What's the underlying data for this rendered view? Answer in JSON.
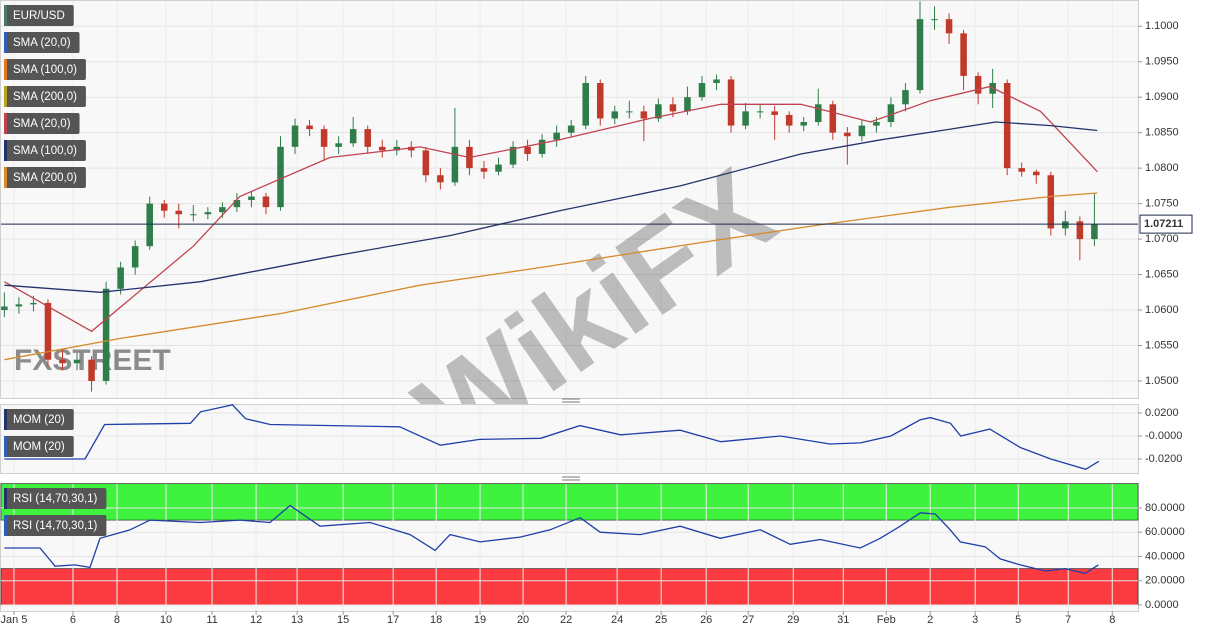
{
  "chart_data": [
    {
      "type": "candlestick",
      "legend": [
        {
          "label": "EUR/USD",
          "color": "#4b7a6a"
        },
        {
          "label": "SMA (20,0)",
          "color": "#2f5fb5"
        },
        {
          "label": "SMA (100,0)",
          "color": "#e07b22"
        },
        {
          "label": "SMA (200,0)",
          "color": "#b9a21e"
        },
        {
          "label": "SMA (20,0)",
          "color": "#c0434f"
        },
        {
          "label": "SMA (100,0)",
          "color": "#24336b"
        },
        {
          "label": "SMA (200,0)",
          "color": "#d58a2b"
        }
      ],
      "up_color": "#2f7d4a",
      "down_color": "#c0392b",
      "xlim": [
        -0.3,
        78
      ],
      "ylim": [
        1.0476,
        1.1037
      ],
      "yticks": [
        {
          "value": 1.05,
          "label": "1.0500"
        },
        {
          "value": 1.055,
          "label": "1.0550"
        },
        {
          "value": 1.06,
          "label": "1.0600"
        },
        {
          "value": 1.065,
          "label": "1.0650"
        },
        {
          "value": 1.07,
          "label": "1.0700"
        },
        {
          "value": 1.075,
          "label": "1.0750"
        },
        {
          "value": 1.08,
          "label": "1.0800"
        },
        {
          "value": 1.085,
          "label": "1.0850"
        },
        {
          "value": 1.09,
          "label": "1.0900"
        },
        {
          "value": 1.095,
          "label": "1.0950"
        },
        {
          "value": 1.1,
          "label": "1.1000"
        }
      ],
      "last_price": 1.07211,
      "watermarks": [
        "FXSTREET",
        "WikiFX"
      ],
      "ohlc": [
        [
          1.06,
          1.0625,
          1.059,
          1.0605
        ],
        [
          1.0605,
          1.0618,
          1.0595,
          1.0608
        ],
        [
          1.0608,
          1.062,
          1.0598,
          1.061
        ],
        [
          1.061,
          1.0615,
          1.052,
          1.053
        ],
        [
          1.053,
          1.0545,
          1.0515,
          1.0525
        ],
        [
          1.0525,
          1.054,
          1.0515,
          1.053
        ],
        [
          1.053,
          1.0535,
          1.0485,
          1.05
        ],
        [
          1.05,
          1.064,
          1.0495,
          1.063
        ],
        [
          1.063,
          1.0668,
          1.0622,
          1.066
        ],
        [
          1.066,
          1.0698,
          1.065,
          1.069
        ],
        [
          1.069,
          1.076,
          1.0685,
          1.075
        ],
        [
          1.075,
          1.0755,
          1.073,
          1.074
        ],
        [
          1.074,
          1.075,
          1.0715,
          1.0735
        ],
        [
          1.0735,
          1.0748,
          1.0725,
          1.0735
        ],
        [
          1.0735,
          1.0745,
          1.0728,
          1.0738
        ],
        [
          1.0738,
          1.0752,
          1.073,
          1.0745
        ],
        [
          1.0745,
          1.0765,
          1.0738,
          1.0755
        ],
        [
          1.0755,
          1.0768,
          1.0745,
          1.076
        ],
        [
          1.076,
          1.0765,
          1.0735,
          1.0745
        ],
        [
          1.0745,
          1.0845,
          1.074,
          1.083
        ],
        [
          1.083,
          1.087,
          1.082,
          1.086
        ],
        [
          1.086,
          1.0868,
          1.0845,
          1.0855
        ],
        [
          1.0855,
          1.086,
          1.081,
          1.083
        ],
        [
          1.083,
          1.0845,
          1.082,
          1.0835
        ],
        [
          1.0835,
          1.0872,
          1.083,
          1.0855
        ],
        [
          1.0855,
          1.086,
          1.082,
          1.083
        ],
        [
          1.083,
          1.084,
          1.0815,
          1.0825
        ],
        [
          1.0825,
          1.084,
          1.0818,
          1.083
        ],
        [
          1.083,
          1.0838,
          1.0815,
          1.0825
        ],
        [
          1.0825,
          1.083,
          1.078,
          1.079
        ],
        [
          1.079,
          1.08,
          1.077,
          1.078
        ],
        [
          1.078,
          1.0885,
          1.0775,
          1.083
        ],
        [
          1.083,
          1.084,
          1.079,
          1.08
        ],
        [
          1.08,
          1.081,
          1.0785,
          1.0795
        ],
        [
          1.0795,
          1.0815,
          1.079,
          1.0805
        ],
        [
          1.0805,
          1.0838,
          1.08,
          1.083
        ],
        [
          1.083,
          1.084,
          1.081,
          1.082
        ],
        [
          1.082,
          1.0848,
          1.0815,
          1.084
        ],
        [
          1.084,
          1.086,
          1.083,
          1.085
        ],
        [
          1.085,
          1.0868,
          1.0845,
          1.086
        ],
        [
          1.086,
          1.093,
          1.0855,
          1.092
        ],
        [
          1.092,
          1.0925,
          1.086,
          1.087
        ],
        [
          1.087,
          1.0888,
          1.0862,
          1.088
        ],
        [
          1.088,
          1.0895,
          1.087,
          1.088
        ],
        [
          1.088,
          1.0888,
          1.0838,
          1.087
        ],
        [
          1.087,
          1.0898,
          1.0865,
          1.089
        ],
        [
          1.089,
          1.09,
          1.0872,
          1.088
        ],
        [
          1.088,
          1.0915,
          1.0875,
          1.09
        ],
        [
          1.09,
          1.093,
          1.0895,
          1.092
        ],
        [
          1.092,
          1.0932,
          1.091,
          1.0925
        ],
        [
          1.0925,
          1.093,
          1.085,
          1.086
        ],
        [
          1.086,
          1.0892,
          1.0855,
          1.088
        ],
        [
          1.088,
          1.089,
          1.087,
          1.088
        ],
        [
          1.088,
          1.0888,
          1.084,
          1.0875
        ],
        [
          1.0875,
          1.088,
          1.085,
          1.086
        ],
        [
          1.086,
          1.0872,
          1.0852,
          1.0865
        ],
        [
          1.0865,
          1.0912,
          1.086,
          1.089
        ],
        [
          1.089,
          1.0895,
          1.084,
          1.085
        ],
        [
          1.085,
          1.0858,
          1.0805,
          1.0845
        ],
        [
          1.0845,
          1.0868,
          1.0838,
          1.086
        ],
        [
          1.086,
          1.0872,
          1.085,
          1.0865
        ],
        [
          1.0865,
          1.09,
          1.0858,
          1.089
        ],
        [
          1.089,
          1.092,
          1.088,
          1.091
        ],
        [
          1.091,
          1.1035,
          1.0905,
          1.101
        ],
        [
          1.101,
          1.1028,
          1.0995,
          1.101
        ],
        [
          1.101,
          1.1018,
          1.0975,
          1.099
        ],
        [
          1.099,
          1.0995,
          1.091,
          1.093
        ],
        [
          1.093,
          1.0935,
          1.089,
          1.0905
        ],
        [
          1.0905,
          1.094,
          1.0885,
          1.092
        ],
        [
          1.092,
          1.0925,
          1.079,
          1.08
        ],
        [
          1.08,
          1.0808,
          1.0788,
          1.0795
        ],
        [
          1.0795,
          1.0798,
          1.0778,
          1.079
        ],
        [
          1.079,
          1.0795,
          1.0705,
          1.0715
        ],
        [
          1.0715,
          1.074,
          1.0705,
          1.0725
        ],
        [
          1.0725,
          1.0732,
          1.067,
          1.07
        ],
        [
          1.07,
          1.0765,
          1.069,
          1.0721
        ]
      ],
      "series": [
        {
          "color": "#c0434f",
          "x": [
            0,
            6,
            13,
            16.2,
            22.4,
            28.6,
            32,
            38.2,
            44.4,
            49.3,
            54.8,
            59.6,
            63.7,
            67.8,
            71.3,
            75.2
          ],
          "values": [
            1.064,
            1.057,
            1.069,
            1.076,
            1.0815,
            1.083,
            1.0815,
            1.084,
            1.087,
            1.089,
            1.089,
            1.0865,
            1.0895,
            1.0915,
            1.088,
            1.0795
          ]
        },
        {
          "color": "#24336b",
          "x": [
            0,
            6.6,
            13.5,
            22.4,
            30.7,
            38.2,
            46.5,
            54.8,
            60.3,
            65.1,
            68.2,
            72,
            75.2
          ],
          "values": [
            1.0635,
            1.0625,
            1.064,
            1.0675,
            1.0705,
            1.074,
            1.0775,
            1.082,
            1.084,
            1.0855,
            1.0865,
            1.086,
            1.0853
          ]
        },
        {
          "color": "#d58a2b",
          "x": [
            0,
            8,
            19,
            28.6,
            36.9,
            47.9,
            56.1,
            65.1,
            72,
            75.2
          ],
          "values": [
            1.053,
            1.056,
            1.0595,
            1.0635,
            1.066,
            1.0695,
            1.072,
            1.0745,
            1.076,
            1.0765
          ]
        }
      ]
    },
    {
      "type": "line",
      "legend": [
        {
          "label": "MOM (20)",
          "color": "#24336b"
        },
        {
          "label": "MOM (20)",
          "color": "#2f5fb5"
        }
      ],
      "xlim": [
        -0.3,
        78
      ],
      "ylim": [
        -0.0322,
        0.0278
      ],
      "yticks": [
        {
          "value": -0.02,
          "label": "-0.0200"
        },
        {
          "value": 0,
          "label": "-0.0000"
        },
        {
          "value": 0.02,
          "label": "0.0200"
        }
      ],
      "series": [
        {
          "color": "#1f3fa8",
          "x": [
            0,
            5.55,
            6.9,
            12.8,
            13.5,
            15.7,
            16.6,
            18.3,
            27.2,
            30,
            32.7,
            36.9,
            39.6,
            42.4,
            46.5,
            49.3,
            53.4,
            56.8,
            58.9,
            61,
            63,
            63.7,
            65.1,
            65.8,
            67.8,
            69.9,
            72,
            74.4,
            75.3
          ],
          "values": [
            -0.02,
            -0.02,
            0.01,
            0.011,
            0.021,
            0.027,
            0.015,
            0.01,
            0.008,
            -0.008,
            -0.003,
            -0.002,
            0.009,
            0.001,
            0.005,
            -0.005,
            0.0,
            -0.007,
            -0.006,
            0.0,
            0.014,
            0.016,
            0.011,
            0.0,
            0.006,
            -0.01,
            -0.02,
            -0.029,
            -0.022
          ]
        }
      ]
    },
    {
      "type": "line",
      "legend": [
        {
          "label": "RSI (14,70,30,1)",
          "color": "#24336b"
        },
        {
          "label": "RSI (14,70,30,1)",
          "color": "#2f5fb5"
        }
      ],
      "xlim": [
        -0.3,
        78
      ],
      "ylim": [
        -5,
        100.6
      ],
      "yticks": [
        {
          "value": 0,
          "label": "0.0000"
        },
        {
          "value": 20,
          "label": "20.0000"
        },
        {
          "value": 40,
          "label": "40.0000"
        },
        {
          "value": 60,
          "label": "60.0000"
        },
        {
          "value": 80,
          "label": "80.0000"
        }
      ],
      "bands": [
        {
          "range": [
            70,
            100
          ],
          "color": "#3ef23e"
        },
        {
          "range": [
            0,
            30
          ],
          "color": "#fb3b3f"
        }
      ],
      "xticks": [
        {
          "value": 0.66,
          "label": "Jan 5"
        },
        {
          "value": 4.72,
          "label": "6"
        },
        {
          "value": 7.75,
          "label": "8"
        },
        {
          "value": 11.12,
          "label": "10"
        },
        {
          "value": 14.29,
          "label": "11"
        },
        {
          "value": 17.32,
          "label": "12"
        },
        {
          "value": 20.14,
          "label": "13"
        },
        {
          "value": 23.31,
          "label": "15"
        },
        {
          "value": 26.75,
          "label": "17"
        },
        {
          "value": 29.71,
          "label": "18"
        },
        {
          "value": 32.73,
          "label": "19"
        },
        {
          "value": 35.69,
          "label": "20"
        },
        {
          "value": 38.65,
          "label": "22"
        },
        {
          "value": 42.16,
          "label": "24"
        },
        {
          "value": 45.19,
          "label": "25"
        },
        {
          "value": 48.29,
          "label": "26"
        },
        {
          "value": 51.18,
          "label": "27"
        },
        {
          "value": 54.28,
          "label": "29"
        },
        {
          "value": 57.72,
          "label": "31"
        },
        {
          "value": 60.68,
          "label": "Feb"
        },
        {
          "value": 63.7,
          "label": "2"
        },
        {
          "value": 66.8,
          "label": "3"
        },
        {
          "value": 69.76,
          "label": "5"
        },
        {
          "value": 73.2,
          "label": "7"
        },
        {
          "value": 76.23,
          "label": "8"
        }
      ],
      "series": [
        {
          "color": "#1f3fa8",
          "x": [
            0,
            2.45,
            3.49,
            4.86,
            5.89,
            6.58,
            8.65,
            10.02,
            13.46,
            16.22,
            18.28,
            19.66,
            21.72,
            25.16,
            27.92,
            29.64,
            30.67,
            32.73,
            35.49,
            37.55,
            39.62,
            40.99,
            43.75,
            46.5,
            49.25,
            52.01,
            54.07,
            56.14,
            58.89,
            60.26,
            61.64,
            63.02,
            64.05,
            65.08,
            65.77,
            67.49,
            68.52,
            69.9,
            71.62,
            72.99,
            74.37,
            75.27
          ],
          "values": [
            47,
            47,
            32,
            33,
            31,
            55,
            62,
            70,
            68,
            70,
            68,
            82,
            65,
            68,
            58,
            45,
            58,
            52,
            56,
            62,
            72,
            60,
            58,
            65,
            55,
            62,
            50,
            54,
            47,
            55,
            65,
            76,
            75,
            62,
            52,
            48,
            38,
            33,
            28,
            30,
            26,
            33
          ]
        }
      ]
    }
  ]
}
